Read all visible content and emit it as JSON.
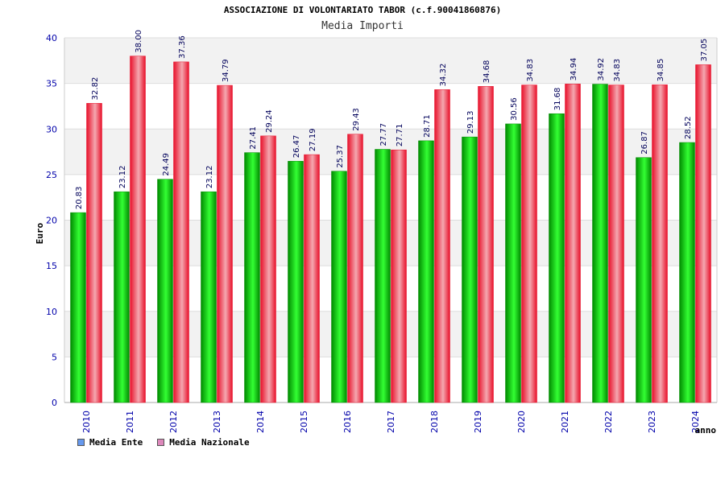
{
  "title": "ASSOCIAZIONE DI VOLONTARIATO TABOR (c.f.90041860876)",
  "chart_data": {
    "type": "bar",
    "title": "Media Importi",
    "xlabel": "anno",
    "ylabel": "Euro",
    "ylim": [
      0,
      40
    ],
    "yticks": [
      0,
      5,
      10,
      15,
      20,
      25,
      30,
      35,
      40
    ],
    "categories": [
      "2010",
      "2011",
      "2012",
      "2013",
      "2014",
      "2015",
      "2016",
      "2017",
      "2018",
      "2019",
      "2020",
      "2021",
      "2022",
      "2023",
      "2024"
    ],
    "series": [
      {
        "name": "Media Ente",
        "values": [
          20.83,
          23.12,
          24.49,
          23.12,
          27.41,
          26.47,
          25.37,
          27.77,
          28.71,
          29.13,
          30.56,
          31.68,
          34.92,
          26.87,
          28.52
        ],
        "labels": [
          "20.83",
          "23.12",
          "24.49",
          "23.12",
          "27.41",
          "26.47",
          "25.37",
          "27.77",
          "28.71",
          "29.13",
          "30.56",
          "31.68",
          "34.92",
          "26.87",
          "28.52"
        ]
      },
      {
        "name": "Media Nazionale",
        "values": [
          32.82,
          38.0,
          37.36,
          34.79,
          29.24,
          27.19,
          29.43,
          27.71,
          34.32,
          34.68,
          34.83,
          34.94,
          34.83,
          34.85,
          37.05
        ],
        "labels": [
          "32.82",
          "38.00",
          "37.36",
          "34.79",
          "29.24",
          "27.19",
          "29.43",
          "27.71",
          "34.32",
          "34.68",
          "34.83",
          "34.94",
          "34.83",
          "34.85",
          "37.05"
        ]
      }
    ],
    "legend_position": "bottom-left",
    "grid": true
  },
  "colors": {
    "ente_dark": "#008a00",
    "ente_light": "#33ff33",
    "naz_dark": "#e8102a",
    "naz_light": "#f4a8b0",
    "legend_ente": "#6699ee",
    "legend_naz": "#dd88bb",
    "band": "#f2f2f2"
  }
}
